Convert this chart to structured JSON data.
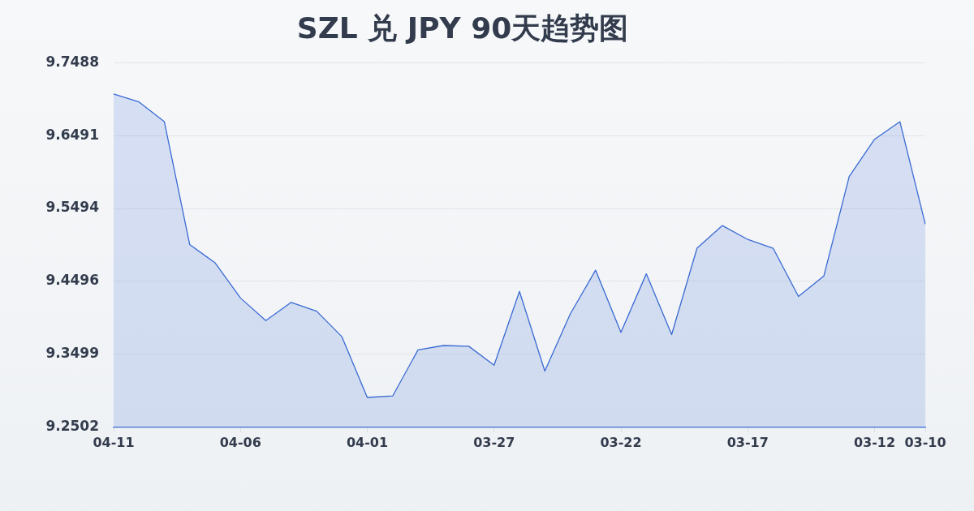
{
  "chart_data": {
    "type": "area",
    "title": "SZL 兑 JPY 90天趋势图",
    "categories": [
      "04-11",
      null,
      null,
      null,
      null,
      "04-06",
      null,
      null,
      null,
      null,
      "04-01",
      null,
      null,
      null,
      null,
      "03-27",
      null,
      null,
      null,
      null,
      "03-22",
      null,
      null,
      null,
      null,
      "03-17",
      null,
      null,
      null,
      null,
      "03-12",
      null,
      "03-10"
    ],
    "series": [
      {
        "color": "#3a6ad4",
        "values": [
          9.706,
          9.695,
          9.668,
          9.5,
          9.475,
          9.427,
          9.396,
          9.421,
          9.409,
          9.374,
          9.291,
          9.293,
          9.356,
          9.362,
          9.361,
          9.335,
          9.436,
          9.327,
          9.405,
          9.465,
          9.38,
          9.46,
          9.377,
          9.495,
          9.526,
          9.507,
          9.495,
          9.429,
          9.457,
          9.593,
          9.644,
          9.668,
          9.528
        ]
      }
    ],
    "ylim": [
      9.2502,
      9.7488
    ],
    "yticks": [
      9.2502,
      9.3499,
      9.4496,
      9.5494,
      9.6491,
      9.7488
    ],
    "grid": "y",
    "legend": false,
    "marker": "none"
  }
}
